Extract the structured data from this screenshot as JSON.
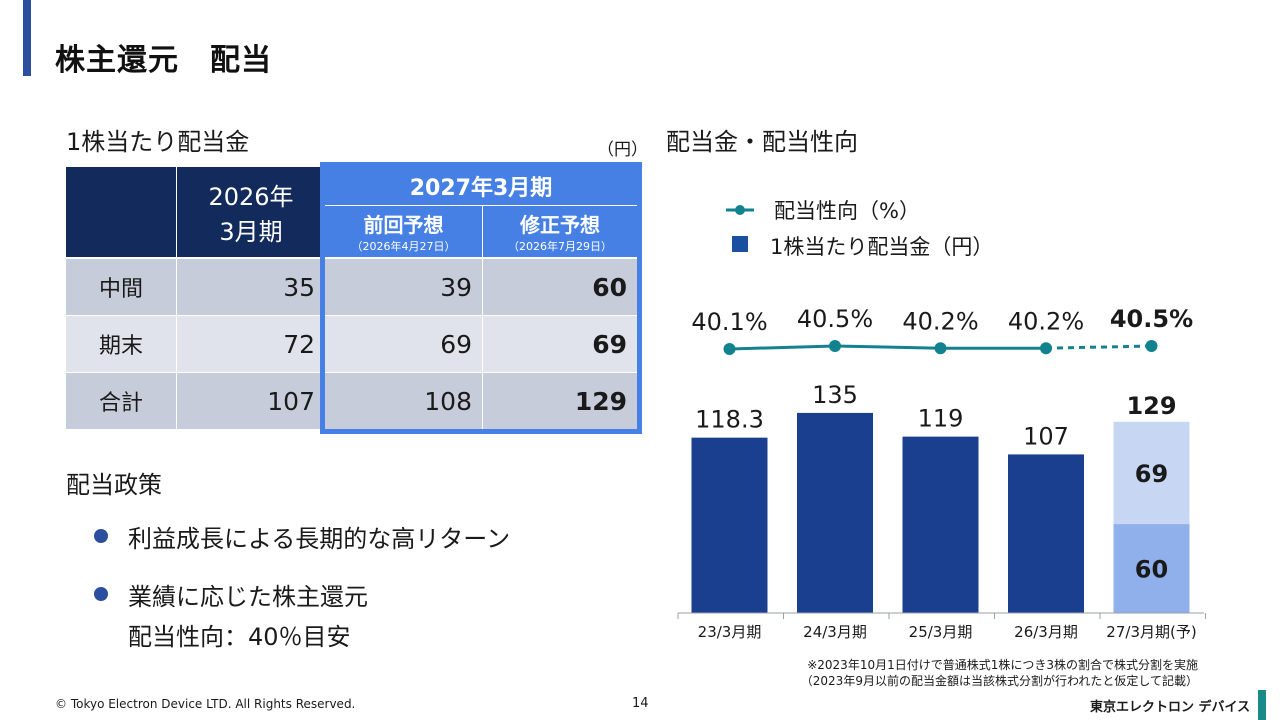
{
  "page": {
    "title": "株主還元　配当",
    "page_number": "14",
    "copyright": "© Tokyo Electron Device LTD. All Rights Reserved.",
    "logo_text": "東京エレクトロン デバイス",
    "note_line1": "※2023年10月1日付けで普通株式1株につき3株の割合で株式分割を実施",
    "note_line2": "（2023年9月以前の配当金額は当該株式分割が行われたと仮定して記載）",
    "accent_color": "#2b4f9e"
  },
  "table": {
    "title": "1株当たり配当金",
    "unit": "（円）",
    "col_2026_line1": "2026年",
    "col_2026_line2": "3月期",
    "group_2027": "2027年3月期",
    "col_prev": "前回予想",
    "col_prev_date": "（2026年4月27日）",
    "col_rev": "修正予想",
    "col_rev_date": "（2026年7月29日）",
    "rows": [
      {
        "label": "中間",
        "v2026": "35",
        "prev": "39",
        "rev": "60"
      },
      {
        "label": "期末",
        "v2026": "72",
        "prev": "69",
        "rev": "69"
      },
      {
        "label": "合計",
        "v2026": "107",
        "prev": "108",
        "rev": "129"
      }
    ]
  },
  "policy": {
    "title": "配当政策",
    "bullet1": "利益成長による長期的な高リターン",
    "bullet2_line1": "業績に応じた株主還元",
    "bullet2_line2": "配当性向：40％目安"
  },
  "chart_title": "配当金・配当性向",
  "chart_data": {
    "type": "bar",
    "categories": [
      "23/3月期",
      "24/3月期",
      "25/3月期",
      "26/3月期",
      "27/3月期(予)"
    ],
    "series": [
      {
        "name": "1株当たり配当金（円）",
        "values": [
          118.3,
          135,
          119,
          107,
          129
        ]
      },
      {
        "name": "配当性向（%）",
        "values": [
          40.1,
          40.5,
          40.2,
          40.2,
          40.5
        ]
      }
    ],
    "value_labels": [
      "118.3",
      "135",
      "119",
      "107",
      "129"
    ],
    "payout_labels": [
      "40.1%",
      "40.5%",
      "40.2%",
      "40.2%",
      "40.5%"
    ],
    "forecast_breakdown": {
      "interim": 60,
      "year_end": 69,
      "interim_label": "60",
      "year_end_label": "69"
    },
    "legend": {
      "line": "配当性向（%）",
      "bar": "1株当たり配当金（円）"
    },
    "legend_placement": "top-left",
    "forecast_dashed_line": true,
    "colors": {
      "bar": "#1b3f8f",
      "forecast_interim": "#8fb0ea",
      "forecast_year_end": "#c7d7f3",
      "line": "#13828f"
    }
  }
}
